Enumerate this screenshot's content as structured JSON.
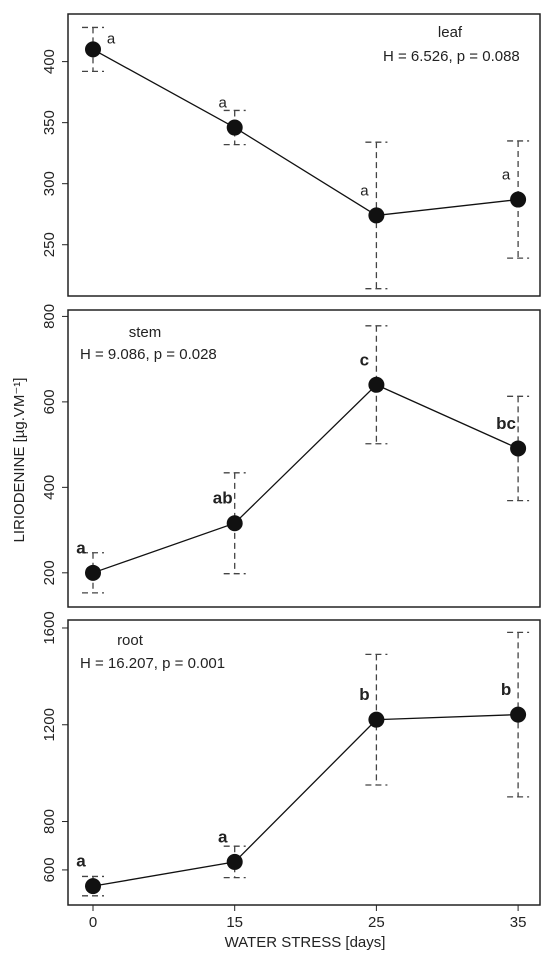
{
  "chart_data": [
    {
      "type": "line",
      "title": "leaf",
      "annotation": "H = 6.526, p = 0.088",
      "series": [
        {
          "color": "#111111",
          "values": [
            410,
            346,
            274,
            287
          ],
          "errors": [
            18,
            14,
            60,
            48
          ],
          "value_labels": [
            "a",
            "a",
            "a",
            "a"
          ]
        }
      ],
      "ylim": [
        208,
        439
      ],
      "yticks": [
        250,
        300,
        350,
        400
      ]
    },
    {
      "type": "line",
      "title": "stem",
      "annotation": "H = 9.086, p = 0.028",
      "ylabel": "LIRIODENINE [µg.VM⁻¹]",
      "series": [
        {
          "color": "#111111",
          "values": [
            200,
            316,
            640,
            491
          ],
          "errors": [
            47,
            118,
            138,
            122
          ],
          "value_labels": [
            "a",
            "ab",
            "c",
            "bc"
          ]
        }
      ],
      "ylim": [
        120,
        815
      ],
      "yticks": [
        200,
        400,
        600,
        800
      ]
    },
    {
      "type": "line",
      "title": "root",
      "annotation": "H = 16.207, p = 0.001",
      "xlabel": "WATER STRESS [days]",
      "categories": [
        "0",
        "15",
        "25",
        "35"
      ],
      "series": [
        {
          "color": "#111111",
          "values": [
            533,
            633,
            1221,
            1242
          ],
          "errors": [
            40,
            65,
            270,
            340
          ],
          "value_labels": [
            "a",
            "a",
            "b",
            "b"
          ]
        }
      ],
      "ylim": [
        455,
        1633
      ],
      "yticks": [
        600,
        800,
        1200,
        1600
      ]
    }
  ]
}
